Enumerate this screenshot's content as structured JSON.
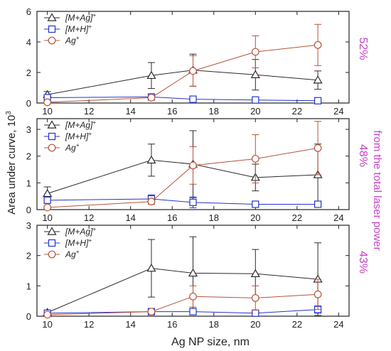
{
  "figure": {
    "ylabel": "Area under curve, 10",
    "ylabel_exp": "3",
    "xlabel": "Ag NP size, nm",
    "right_label": "from the total laser power",
    "colors": {
      "black": "#2b2b2b",
      "blue": "#2233cc",
      "red": "#b5533c",
      "magenta": "#c542c5"
    }
  },
  "chart_data": [
    {
      "type": "line",
      "xlim": [
        9.5,
        24.5
      ],
      "ylim": [
        0,
        6
      ],
      "xticks": [
        10,
        12,
        14,
        16,
        18,
        20,
        22,
        24
      ],
      "yticks": [
        0,
        2,
        4,
        6
      ],
      "show_xtick_labels": true,
      "right_annotation": "52%",
      "legend": "top-left",
      "series": [
        {
          "name": "[M+Ag]",
          "sup": "+",
          "marker": "triangle",
          "color": "#2b2b2b",
          "x": [
            10,
            15,
            17,
            20,
            23
          ],
          "y": [
            0.55,
            1.8,
            2.15,
            1.85,
            1.5
          ],
          "err": [
            0.2,
            0.85,
            1.05,
            1.0,
            0.6
          ]
        },
        {
          "name": "[M+H]",
          "sup": "+",
          "marker": "square",
          "color": "#2233cc",
          "x": [
            10,
            15,
            17,
            20,
            23
          ],
          "y": [
            0.35,
            0.4,
            0.25,
            0.2,
            0.15
          ],
          "err": [
            0.1,
            0.15,
            0.1,
            0.1,
            0.1
          ]
        },
        {
          "name": "Ag",
          "sup": "+",
          "marker": "circle",
          "color": "#b5533c",
          "x": [
            10,
            15,
            17,
            20,
            23
          ],
          "y": [
            0.05,
            0.35,
            2.1,
            3.35,
            3.8
          ],
          "err": [
            0.05,
            0.15,
            1.0,
            1.05,
            1.35
          ]
        }
      ]
    },
    {
      "type": "line",
      "xlim": [
        9.5,
        24.5
      ],
      "ylim": [
        0,
        3.4
      ],
      "xticks": [
        10,
        12,
        14,
        16,
        18,
        20,
        22,
        24
      ],
      "yticks": [
        0,
        1,
        2,
        3
      ],
      "show_xtick_labels": true,
      "right_annotation": "48%",
      "legend": "top-left",
      "series": [
        {
          "name": "[M+Ag]",
          "sup": "+",
          "marker": "triangle",
          "color": "#2b2b2b",
          "x": [
            10,
            15,
            17,
            20,
            23
          ],
          "y": [
            0.6,
            1.85,
            1.7,
            1.2,
            1.3
          ],
          "err": [
            0.25,
            0.6,
            1.25,
            0.5,
            1.15
          ]
        },
        {
          "name": "[M+H]",
          "sup": "+",
          "marker": "square",
          "color": "#2233cc",
          "x": [
            10,
            15,
            17,
            20,
            23
          ],
          "y": [
            0.35,
            0.4,
            0.27,
            0.2,
            0.2
          ],
          "err": [
            0.1,
            0.15,
            0.2,
            0.07,
            0.1
          ]
        },
        {
          "name": "Ag",
          "sup": "+",
          "marker": "circle",
          "color": "#b5533c",
          "x": [
            10,
            15,
            17,
            20,
            23
          ],
          "y": [
            0.08,
            0.3,
            1.65,
            1.9,
            2.3
          ],
          "err": [
            0.05,
            0.1,
            0.7,
            0.9,
            1.0
          ]
        }
      ]
    },
    {
      "type": "line",
      "xlim": [
        9.5,
        24.5
      ],
      "ylim": [
        0,
        3
      ],
      "xticks": [
        10,
        12,
        14,
        16,
        18,
        20,
        22,
        24
      ],
      "yticks": [
        0,
        1,
        2,
        3
      ],
      "show_xtick_labels": true,
      "right_annotation": "43%",
      "legend": "top-left",
      "series": [
        {
          "name": "[M+Ag]",
          "sup": "+",
          "marker": "triangle",
          "color": "#2b2b2b",
          "x": [
            10,
            15,
            17,
            20,
            23
          ],
          "y": [
            0.12,
            1.58,
            1.42,
            1.4,
            1.22
          ],
          "err": [
            0.05,
            0.95,
            1.2,
            0.8,
            1.2
          ]
        },
        {
          "name": "[M+H]",
          "sup": "+",
          "marker": "square",
          "color": "#2233cc",
          "x": [
            10,
            15,
            17,
            20,
            23
          ],
          "y": [
            0.1,
            0.15,
            0.15,
            0.1,
            0.22
          ],
          "err": [
            0.05,
            0.05,
            0.1,
            0.05,
            0.12
          ]
        },
        {
          "name": "Ag",
          "sup": "+",
          "marker": "circle",
          "color": "#b5533c",
          "x": [
            10,
            15,
            17,
            20,
            23
          ],
          "y": [
            0.05,
            0.15,
            0.65,
            0.6,
            0.72
          ],
          "err": [
            0.03,
            0.05,
            0.35,
            0.4,
            0.5
          ]
        }
      ]
    }
  ]
}
